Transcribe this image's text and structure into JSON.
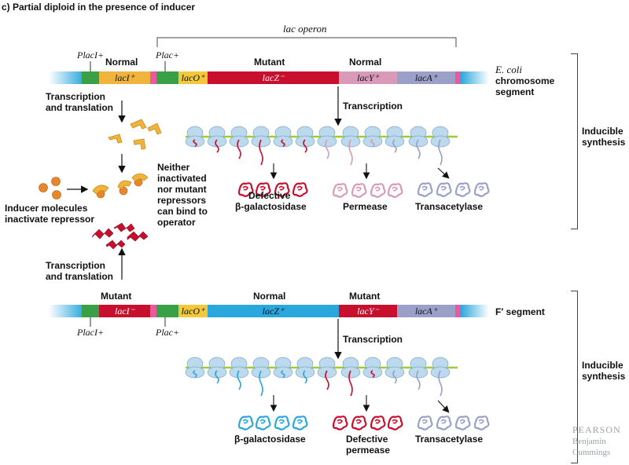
{
  "title": "c) Partial diploid in the presence of inducer",
  "top": {
    "operon_label": "lac operon",
    "status": {
      "laci": "Normal",
      "lacz": "Mutant",
      "lacy": "Normal"
    },
    "promoter_laci": "PlacI+",
    "promoter_lac": "Plac+",
    "genes": {
      "laci": "lacI⁺",
      "laco": "lacO⁺",
      "lacz": "lacZ⁻",
      "lacy": "lacY⁺",
      "laca": "lacA⁺"
    },
    "segment_italic": "E. coli",
    "segment_line2": "chromosome",
    "segment_line3": "segment",
    "transcription": "Transcription",
    "products": {
      "z_line1": "Defective",
      "z_line2": "β-galactosidase",
      "y": "Permease",
      "a": "Transacetylase"
    },
    "synthesis_line1": "Inducible",
    "synthesis_line2": "synthesis"
  },
  "left": {
    "tt_top_line1": "Transcription",
    "tt_top_line2": "and translation",
    "inducer_line1": "Inducer molecules",
    "inducer_line2": "inactivate repressor",
    "neither": [
      "Neither",
      "inactivated",
      "nor mutant",
      "repressors",
      "can bind to",
      "operator"
    ],
    "tt_bot_line1": "Transcription",
    "tt_bot_line2": "and translation"
  },
  "bottom": {
    "status": {
      "laci": "Mutant",
      "lacz": "Normal",
      "lacy": "Mutant"
    },
    "promoter_laci": "PlacI+",
    "promoter_lac": "Plac+",
    "genes": {
      "laci": "lacI⁻",
      "laco": "lacO⁺",
      "lacz": "lacZ⁺",
      "lacy": "lacY⁻",
      "laca": "lacA⁺"
    },
    "segment_label": "F′ segment",
    "transcription": "Transcription",
    "products": {
      "z": "β-galactosidase",
      "y_line1": "Defective",
      "y_line2": "permease",
      "a": "Transacetylase"
    },
    "synthesis_line1": "Inducible",
    "synthesis_line2": "synthesis"
  },
  "publisher": {
    "line1": "PEARSON",
    "line2": "Benjamin",
    "line3": "Cummings"
  },
  "colors": {
    "laci": "#f0b43c",
    "promoter": "#3aa048",
    "operator": "#f3c93a",
    "lacz_mutant": "#c8102e",
    "lacz_normal": "#2aa7dc",
    "lacy_normal": "#d89ab8",
    "lacy_mutant": "#c8102e",
    "laca": "#9aa0c8",
    "ribosome": "#bcd9ee",
    "mrna": "#9ccc3c"
  }
}
